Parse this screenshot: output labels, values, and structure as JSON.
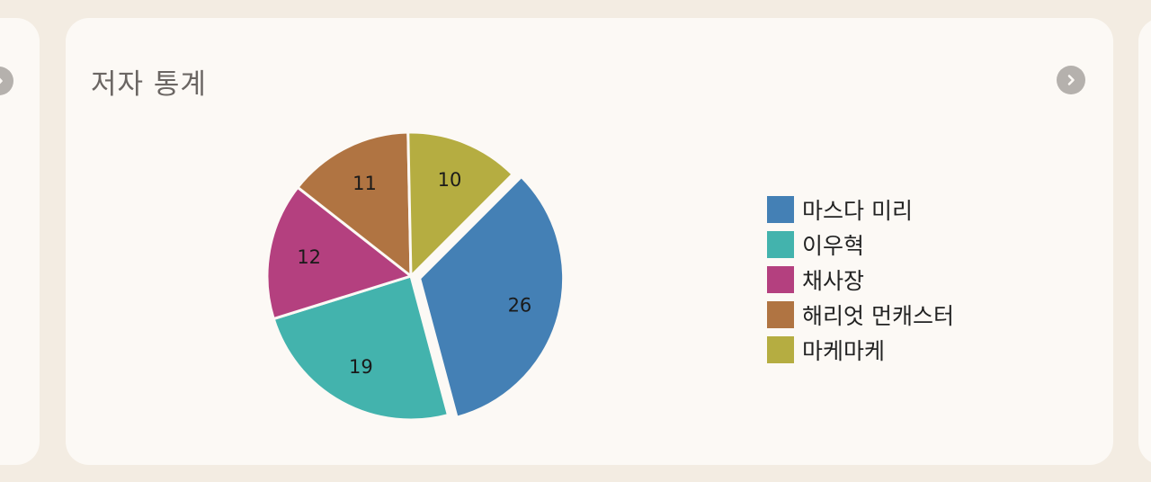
{
  "card": {
    "title": "저자 통계"
  },
  "icons": {
    "next": "chevron-right-icon"
  },
  "colors": {
    "background": "#f3ece2",
    "card": "#fcf9f5",
    "nav_button": "#b5b1ad"
  },
  "chart_data": {
    "type": "pie",
    "title": "",
    "categories": [
      "마스다 미리",
      "이우혁",
      "채사장",
      "해리엇 먼캐스터",
      "마케마케"
    ],
    "values": [
      26,
      19,
      12,
      11,
      10
    ],
    "colors": [
      "#4480b5",
      "#43b3ad",
      "#b4407f",
      "#b07442",
      "#b5ad41"
    ],
    "data_labels": [
      "26",
      "19",
      "12",
      "11",
      "10"
    ],
    "exploded": [
      true,
      false,
      false,
      false,
      false
    ],
    "legend": "right"
  }
}
